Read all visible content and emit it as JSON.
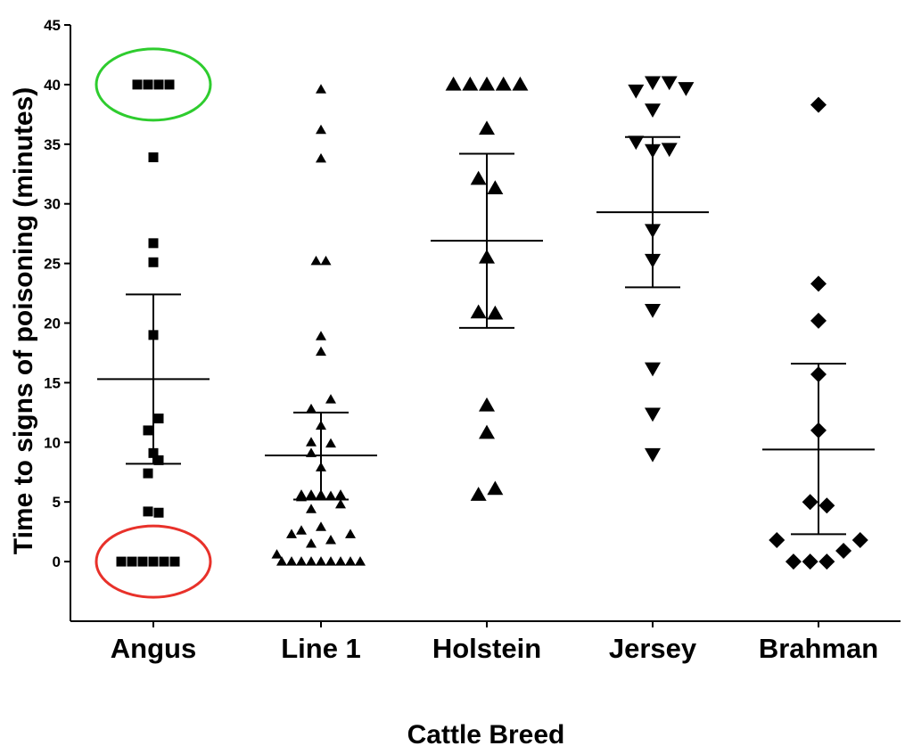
{
  "chart_data": {
    "type": "scatter",
    "title": "",
    "xlabel": "Cattle Breed",
    "ylabel": "Time to  signs of poisoning (minutes)",
    "ylim": [
      -5,
      45
    ],
    "yticks": [
      0,
      5,
      10,
      15,
      20,
      25,
      30,
      35,
      40,
      45
    ],
    "categories": [
      "Angus",
      "Line 1",
      "Holstein",
      "Jersey",
      "Brahman"
    ],
    "series": [
      {
        "name": "Angus",
        "marker": "square",
        "mean": 15.3,
        "error_low": 8.2,
        "error_high": 22.4,
        "points": [
          {
            "offset": -3,
            "value": 0
          },
          {
            "offset": -2,
            "value": 0
          },
          {
            "offset": -1,
            "value": 0
          },
          {
            "offset": 0,
            "value": 0
          },
          {
            "offset": 1,
            "value": 0
          },
          {
            "offset": 2,
            "value": 0
          },
          {
            "offset": -1.5,
            "value": 40
          },
          {
            "offset": -0.5,
            "value": 40
          },
          {
            "offset": 0.5,
            "value": 40
          },
          {
            "offset": 1.5,
            "value": 40
          },
          {
            "offset": 0,
            "value": 33.9
          },
          {
            "offset": 0,
            "value": 26.7
          },
          {
            "offset": 0,
            "value": 25.1
          },
          {
            "offset": 0,
            "value": 19
          },
          {
            "offset": 0.5,
            "value": 12
          },
          {
            "offset": -0.5,
            "value": 11
          },
          {
            "offset": 0,
            "value": 9.1
          },
          {
            "offset": 0.5,
            "value": 8.5
          },
          {
            "offset": -0.5,
            "value": 7.4
          },
          {
            "offset": -0.5,
            "value": 4.2
          },
          {
            "offset": 0.5,
            "value": 4.1
          }
        ]
      },
      {
        "name": "Line 1",
        "marker": "triangle-up",
        "mean": 8.9,
        "error_low": 5.2,
        "error_high": 12.5,
        "points": [
          {
            "offset": -4,
            "value": 0
          },
          {
            "offset": -3,
            "value": 0
          },
          {
            "offset": -2,
            "value": 0
          },
          {
            "offset": -1,
            "value": 0
          },
          {
            "offset": 0,
            "value": 0
          },
          {
            "offset": 1,
            "value": 0
          },
          {
            "offset": 2,
            "value": 0
          },
          {
            "offset": 3,
            "value": 0
          },
          {
            "offset": 4,
            "value": 0
          },
          {
            "offset": -4.5,
            "value": 0.6
          },
          {
            "offset": -1,
            "value": 1.5
          },
          {
            "offset": 1,
            "value": 1.8
          },
          {
            "offset": -3,
            "value": 2.3
          },
          {
            "offset": 3,
            "value": 2.3
          },
          {
            "offset": -2,
            "value": 2.6
          },
          {
            "offset": 0,
            "value": 2.9
          },
          {
            "offset": -1,
            "value": 4.4
          },
          {
            "offset": 2,
            "value": 4.8
          },
          {
            "offset": -2,
            "value": 5.4
          },
          {
            "offset": 1,
            "value": 5.5
          },
          {
            "offset": -1,
            "value": 5.6
          },
          {
            "offset": 0,
            "value": 5.6
          },
          {
            "offset": 2,
            "value": 5.6
          },
          {
            "offset": -2,
            "value": 5.6
          },
          {
            "offset": 0,
            "value": 7.9
          },
          {
            "offset": -1,
            "value": 9.1
          },
          {
            "offset": 1,
            "value": 9.9
          },
          {
            "offset": -1,
            "value": 10
          },
          {
            "offset": 0,
            "value": 11.4
          },
          {
            "offset": -1,
            "value": 12.8
          },
          {
            "offset": 1,
            "value": 13.6
          },
          {
            "offset": 0,
            "value": 17.6
          },
          {
            "offset": 0,
            "value": 18.9
          },
          {
            "offset": -0.5,
            "value": 25.2
          },
          {
            "offset": 0.5,
            "value": 25.2
          },
          {
            "offset": 0,
            "value": 33.8
          },
          {
            "offset": 0,
            "value": 36.2
          },
          {
            "offset": 0,
            "value": 39.6
          }
        ]
      },
      {
        "name": "Holstein",
        "marker": "triangle-up",
        "mean": 26.9,
        "error_low": 19.6,
        "error_high": 34.2,
        "points": [
          {
            "offset": -2,
            "value": 40
          },
          {
            "offset": -1,
            "value": 40
          },
          {
            "offset": 0,
            "value": 40
          },
          {
            "offset": 1,
            "value": 40
          },
          {
            "offset": 2,
            "value": 40
          },
          {
            "offset": 0,
            "value": 36.3
          },
          {
            "offset": -0.5,
            "value": 32.1
          },
          {
            "offset": 0.5,
            "value": 31.3
          },
          {
            "offset": 0,
            "value": 25.5
          },
          {
            "offset": -0.5,
            "value": 20.9
          },
          {
            "offset": 0.5,
            "value": 20.8
          },
          {
            "offset": 0,
            "value": 13.1
          },
          {
            "offset": 0,
            "value": 10.8
          },
          {
            "offset": -0.5,
            "value": 5.6
          },
          {
            "offset": 0.5,
            "value": 6.1
          }
        ]
      },
      {
        "name": "Jersey",
        "marker": "triangle-down",
        "mean": 29.3,
        "error_low": 23,
        "error_high": 35.6,
        "points": [
          {
            "offset": -1,
            "value": 39.5
          },
          {
            "offset": 0,
            "value": 40.2
          },
          {
            "offset": 1,
            "value": 40.2
          },
          {
            "offset": 2,
            "value": 39.7
          },
          {
            "offset": 0,
            "value": 37.9
          },
          {
            "offset": -1,
            "value": 35.2
          },
          {
            "offset": 0,
            "value": 34.5
          },
          {
            "offset": 1,
            "value": 34.6
          },
          {
            "offset": 0,
            "value": 27.8
          },
          {
            "offset": 0,
            "value": 25.3
          },
          {
            "offset": 0,
            "value": 21.1
          },
          {
            "offset": 0,
            "value": 16.2
          },
          {
            "offset": 0,
            "value": 12.4
          },
          {
            "offset": 0,
            "value": 9
          }
        ]
      },
      {
        "name": "Brahman",
        "marker": "diamond",
        "mean": 9.4,
        "error_low": 2.3,
        "error_high": 16.6,
        "points": [
          {
            "offset": 0,
            "value": 38.3
          },
          {
            "offset": 0,
            "value": 23.3
          },
          {
            "offset": 0,
            "value": 20.2
          },
          {
            "offset": 0,
            "value": 15.7
          },
          {
            "offset": 0,
            "value": 11
          },
          {
            "offset": -0.5,
            "value": 5
          },
          {
            "offset": 0.5,
            "value": 4.7
          },
          {
            "offset": -2.5,
            "value": 1.8
          },
          {
            "offset": 2.5,
            "value": 1.8
          },
          {
            "offset": 1.5,
            "value": 0.9
          },
          {
            "offset": -1.5,
            "value": 0
          },
          {
            "offset": -0.5,
            "value": 0
          },
          {
            "offset": 0.5,
            "value": 0
          }
        ]
      }
    ],
    "annotations": [
      {
        "type": "ellipse",
        "category": "Angus",
        "value": 40,
        "color": "#2ecc2e",
        "label": "highlight Angus at 40"
      },
      {
        "type": "ellipse",
        "category": "Angus",
        "value": 0,
        "color": "#e8312a",
        "label": "highlight Angus at 0"
      }
    ]
  }
}
